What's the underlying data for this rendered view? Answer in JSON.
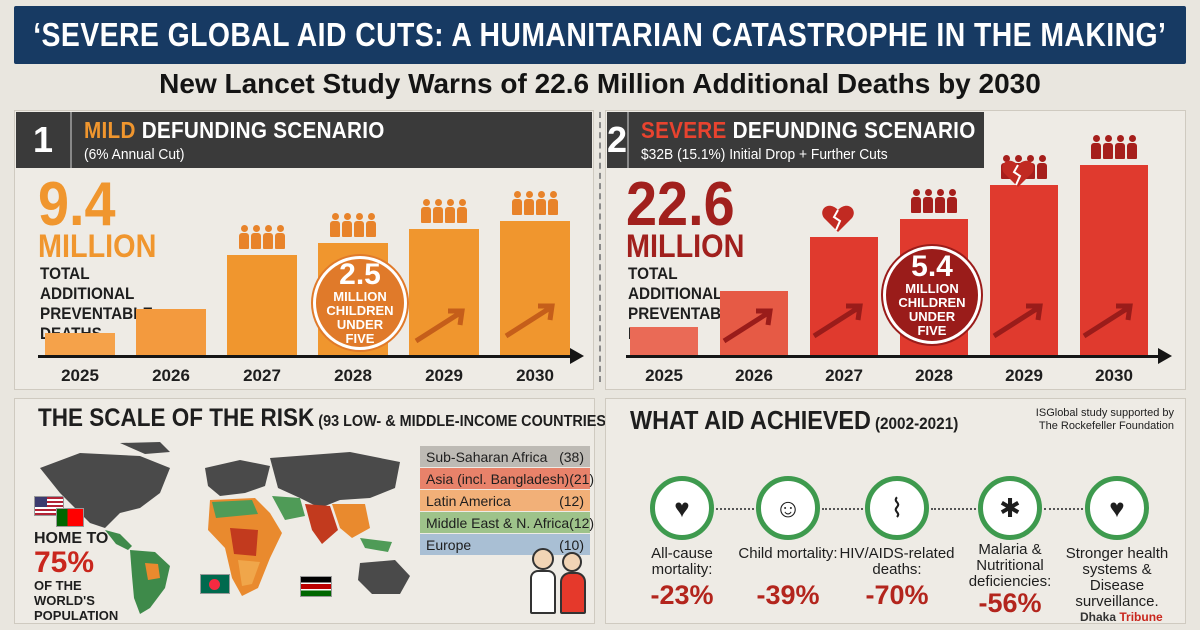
{
  "header": {
    "title": "‘SEVERE GLOBAL AID CUTS: A HUMANITARIAN CATASTROPHE IN THE MAKING’",
    "subtitle": "New Lancet Study Warns of 22.6 Million Additional Deaths by 2030"
  },
  "scenario_mild": {
    "number": "1",
    "title_accent": "MILD",
    "title_rest": "DEFUNDING SCENARIO",
    "subtitle": "(6% Annual Cut)",
    "big_number": "9.4",
    "big_unit": "MILLION",
    "big_desc": "TOTAL ADDITIONAL PREVENTABLE DEATHS",
    "circle_number": "2.5",
    "circle_unit": "MILLION",
    "circle_desc": "CHILDREN UNDER FIVE",
    "accent_color": "#f0962e",
    "years": [
      "2025",
      "2026",
      "2027",
      "2028",
      "2029",
      "2030"
    ]
  },
  "scenario_severe": {
    "number": "2",
    "title_accent": "SEVERE",
    "title_rest": "DEFUNDING SCENARIO",
    "subtitle": "$32B (15.1%) Initial Drop + Further Cuts",
    "big_number": "22.6",
    "big_unit": "MILLION",
    "big_desc": "TOTAL ADDITIONAL PREVENTABLE DEATHS",
    "circle_number": "5.4",
    "circle_unit": "MILLION",
    "circle_desc": "CHILDREN UNDER FIVE",
    "accent_color": "#e03a2e",
    "years": [
      "2025",
      "2026",
      "2027",
      "2028",
      "2029",
      "2030"
    ]
  },
  "risk": {
    "title": "THE SCALE OF THE RISK",
    "title_paren": "(93 LOW- & MIDDLE-INCOME COUNTRIES)",
    "home_to": "HOME TO",
    "percent": "75%",
    "population": "OF THE WORLD'S POPULATION",
    "regions": [
      {
        "name": "Sub-Saharan Africa",
        "count": "(38)",
        "color": "#bdbab4"
      },
      {
        "name": "Asia (incl. Bangladesh)",
        "count": "(21)",
        "color": "#e8826a"
      },
      {
        "name": "Latin America",
        "count": "(12)",
        "color": "#f2b078"
      },
      {
        "name": "Middle East & N. Africa",
        "count": "(12)",
        "color": "#9ec38a"
      },
      {
        "name": "Europe",
        "count": "(10)",
        "color": "#a9bfd4"
      }
    ]
  },
  "achieved": {
    "title": "WHAT AID ACHIEVED",
    "title_paren": "(2002-2021)",
    "source": "ISGlobal study supported by The Rockefeller Foundation",
    "stats": [
      {
        "label": "All-cause mortality:",
        "value": "-23%",
        "icon": "heart-hands-icon"
      },
      {
        "label": "Child mortality:",
        "value": "-39%",
        "icon": "baby-icon"
      },
      {
        "label": "HIV/AIDS-related deaths:",
        "value": "-70%",
        "icon": "ribbon-icon"
      },
      {
        "label": "Malaria & Nutritional deficiencies:",
        "value": "-56%",
        "icon": "mosquito-icon"
      },
      {
        "label": "Stronger health systems & Disease surveillance.",
        "value": "",
        "icon": "health-hands-icon"
      }
    ]
  },
  "footer": {
    "brand_a": "Dhaka",
    "brand_b": "Tribune"
  }
}
